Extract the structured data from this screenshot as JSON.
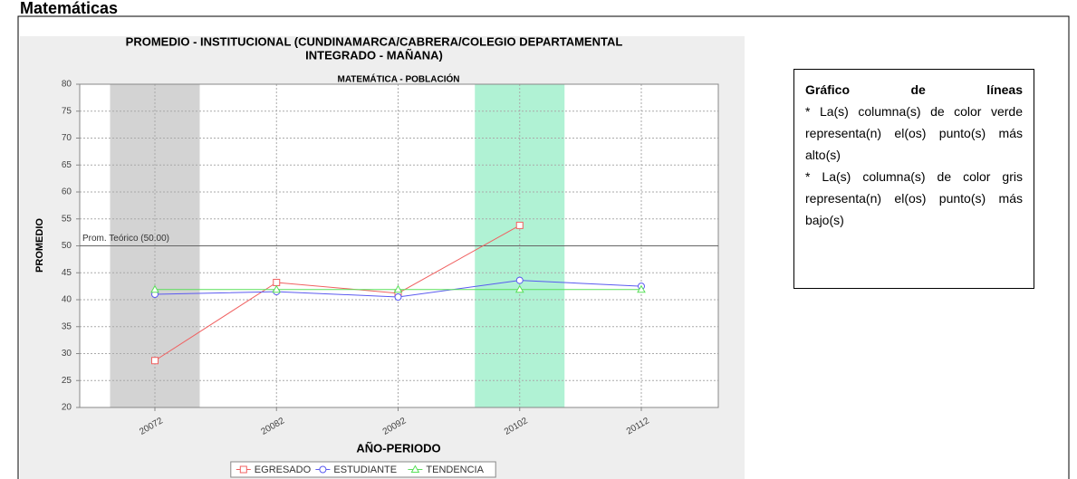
{
  "heading": "Matemáticas",
  "chart_data": {
    "type": "line",
    "title_lines": [
      "PROMEDIO - INSTITUCIONAL (CUNDINAMARCA/CABRERA/COLEGIO DEPARTAMENTAL",
      "INTEGRADO - MAÑANA)"
    ],
    "subtitle": "MATEMÁTICA - POBLACIÓN",
    "xlabel": "AÑO-PERIODO",
    "ylabel": "PROMEDIO",
    "categories": [
      "20072",
      "20082",
      "20092",
      "20102",
      "20112"
    ],
    "series": [
      {
        "name": "EGRESADO",
        "color": "#f06060",
        "marker": "square",
        "values": [
          28.7,
          43.2,
          41.2,
          53.8,
          null
        ]
      },
      {
        "name": "ESTUDIANTE",
        "color": "#5a5af0",
        "marker": "circle",
        "values": [
          41.0,
          41.5,
          40.5,
          43.6,
          42.5
        ]
      },
      {
        "name": "TENDENCIA",
        "color": "#5ae05a",
        "marker": "triangle",
        "values": [
          41.9,
          41.9,
          41.9,
          41.9,
          41.9
        ]
      }
    ],
    "bands": [
      {
        "category_index": 0,
        "color": "#d3d3d3"
      },
      {
        "category_index": 3,
        "color": "#b0f2d4"
      }
    ],
    "reference_line": {
      "value": 50,
      "label": "Prom. Teórico (50.00)"
    },
    "ylim": [
      20,
      80
    ],
    "yticks": [
      20,
      25,
      30,
      35,
      40,
      45,
      50,
      55,
      60,
      65,
      70,
      75,
      80
    ],
    "grid": true,
    "legend": "bottom"
  },
  "note": {
    "title": "Gráfico de líneas",
    "items": [
      "* La(s) columna(s) de color verde representa(n) el(os) punto(s) más alto(s)",
      "* La(s) columna(s) de color gris representa(n) el(os) punto(s) más bajo(s)"
    ]
  }
}
